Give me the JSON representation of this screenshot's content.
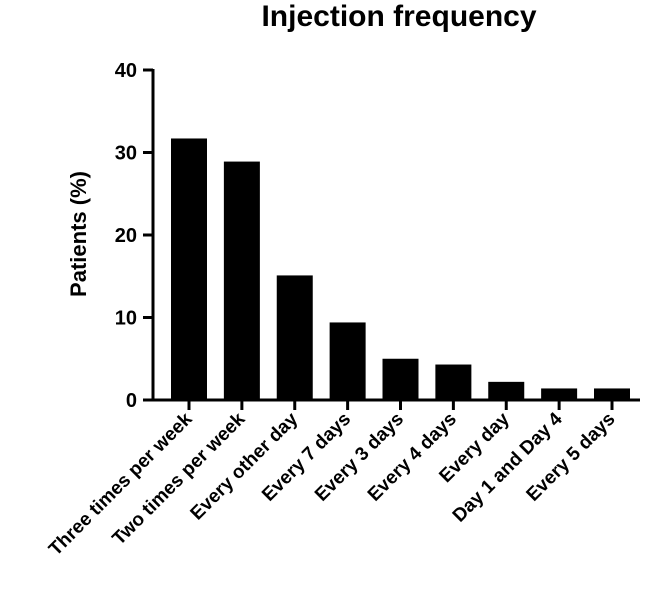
{
  "chart_data": {
    "type": "bar",
    "title": "Injection frequency",
    "xlabel": "",
    "ylabel": "Patients (%)",
    "ylim": [
      0,
      40
    ],
    "yticks": [
      0,
      10,
      20,
      30,
      40
    ],
    "grid": false,
    "categories": [
      "Three times per week",
      "Two times per week",
      "Every other day",
      "Every 7 days",
      "Every 3 days",
      "Every 4 days",
      "Every day",
      "Day 1 and Day 4",
      "Every 5 days"
    ],
    "values": [
      31.7,
      28.9,
      15.1,
      9.4,
      5.0,
      4.3,
      2.2,
      1.4,
      1.4
    ],
    "bar_color": "#000000"
  }
}
